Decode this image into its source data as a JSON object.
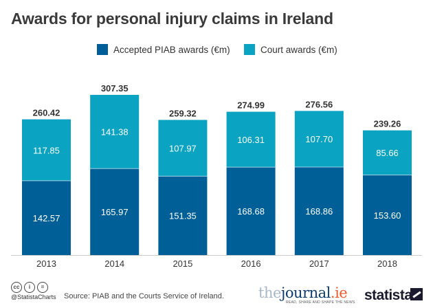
{
  "header": {
    "title": "Awards for personal injury claims in Ireland"
  },
  "colors": {
    "piab": "#005f97",
    "court": "#0aa3c2"
  },
  "chart_data": {
    "type": "bar",
    "stacked": true,
    "categories": [
      "2013",
      "2014",
      "2015",
      "2016",
      "2017",
      "2018"
    ],
    "series": [
      {
        "name": "Accepted PIAB awards (€m)",
        "values": [
          142.57,
          165.97,
          151.35,
          168.68,
          168.86,
          153.6
        ],
        "labels": [
          "142.57",
          "165.97",
          "151.35",
          "168.68",
          "168.86",
          "153.60"
        ]
      },
      {
        "name": "Court awards (€m)",
        "values": [
          117.85,
          141.38,
          107.97,
          106.31,
          107.7,
          85.66
        ],
        "labels": [
          "117.85",
          "141.38",
          "107.97",
          "106.31",
          "107.70",
          "85.66"
        ]
      }
    ],
    "totals": [
      "260.42",
      "307.35",
      "259.32",
      "274.99",
      "276.56",
      "239.26"
    ],
    "ylim": [
      0,
      310
    ],
    "grid": false,
    "legend": "top-center"
  },
  "footer": {
    "handle": "@StatistaCharts",
    "source": "Source: PIAB and the Courts Service of Ireland.",
    "journal_parts": [
      "the",
      "journal",
      ".ie"
    ],
    "journal_tagline": "READ, SHARE AND SHAPE THE NEWS",
    "statista": "statista",
    "cc_icons": [
      "cc",
      "i",
      "="
    ]
  }
}
